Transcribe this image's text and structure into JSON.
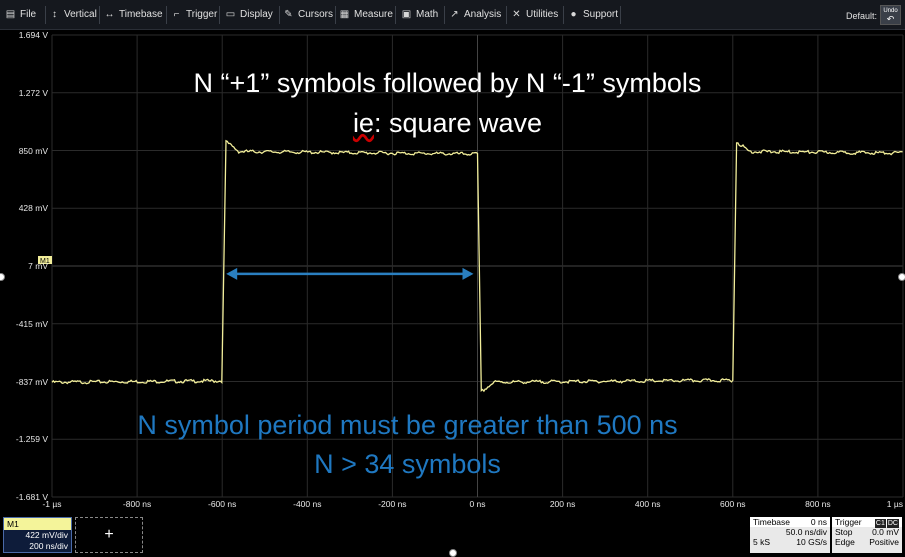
{
  "menu": {
    "items": [
      {
        "label": "File",
        "icon": "file-icon"
      },
      {
        "label": "Vertical",
        "icon": "vertical-icon"
      },
      {
        "label": "Timebase",
        "icon": "timebase-icon"
      },
      {
        "label": "Trigger",
        "icon": "trigger-icon"
      },
      {
        "label": "Display",
        "icon": "display-icon"
      },
      {
        "label": "Cursors",
        "icon": "cursors-icon"
      },
      {
        "label": "Measure",
        "icon": "measure-icon"
      },
      {
        "label": "Math",
        "icon": "math-icon"
      },
      {
        "label": "Analysis",
        "icon": "analysis-icon"
      },
      {
        "label": "Utilities",
        "icon": "utilities-icon"
      },
      {
        "label": "Support",
        "icon": "support-icon"
      }
    ],
    "default_label": "Default:",
    "undo_label": "Undo"
  },
  "plot": {
    "y_ticks": [
      "1.694 V",
      "1.272 V",
      "850 mV",
      "428 mV",
      "7 mV",
      "-415 mV",
      "-837 mV",
      "-1.259 V",
      "-1.681 V"
    ],
    "x_ticks": [
      "-1 µs",
      "-800 ns",
      "-600 ns",
      "-400 ns",
      "-200 ns",
      "0 ns",
      "200 ns",
      "400 ns",
      "600 ns",
      "800 ns",
      "1 µs"
    ],
    "trace_color": "#f2ee9a",
    "grid_color": "#2b2b2b",
    "trace_label": "M1",
    "waveform": {
      "type": "square",
      "high_level_mV": 850,
      "low_level_mV": -837,
      "edges_ns": [
        -600,
        0,
        600
      ],
      "first_level": "low",
      "x_range_ns": [
        -1000,
        1000
      ],
      "y_range_mV": [
        -1681,
        1694
      ]
    },
    "annotation_arrow": {
      "from_ns": -600,
      "to_ns": 0,
      "level_mV": 7,
      "color": "#2a7fc0"
    }
  },
  "overlay": {
    "line1": "N “+1” symbols followed by N “-1” symbols",
    "line2_pre": "",
    "line2_ie": "ie",
    "line2_post": ": square wave",
    "line3": "N symbol period must be greater than 500 ns",
    "line4": "N > 34 symbols",
    "blue_color": "#1f78c1"
  },
  "channel_panel": {
    "name": "M1",
    "v_div": "422 mV/div",
    "t_div": "200 ns/div"
  },
  "add_button_label": "+",
  "timebase_panel": {
    "title": "Timebase",
    "offset": "0 ns",
    "div": "50.0 ns/div",
    "samples": "5 kS",
    "rate": "10 GS/s"
  },
  "trigger_panel": {
    "title": "Trigger",
    "badge1": "C1",
    "badge2": "DC",
    "mode": "Stop",
    "level": "0.0 mV",
    "type": "Edge",
    "slope": "Positive"
  }
}
